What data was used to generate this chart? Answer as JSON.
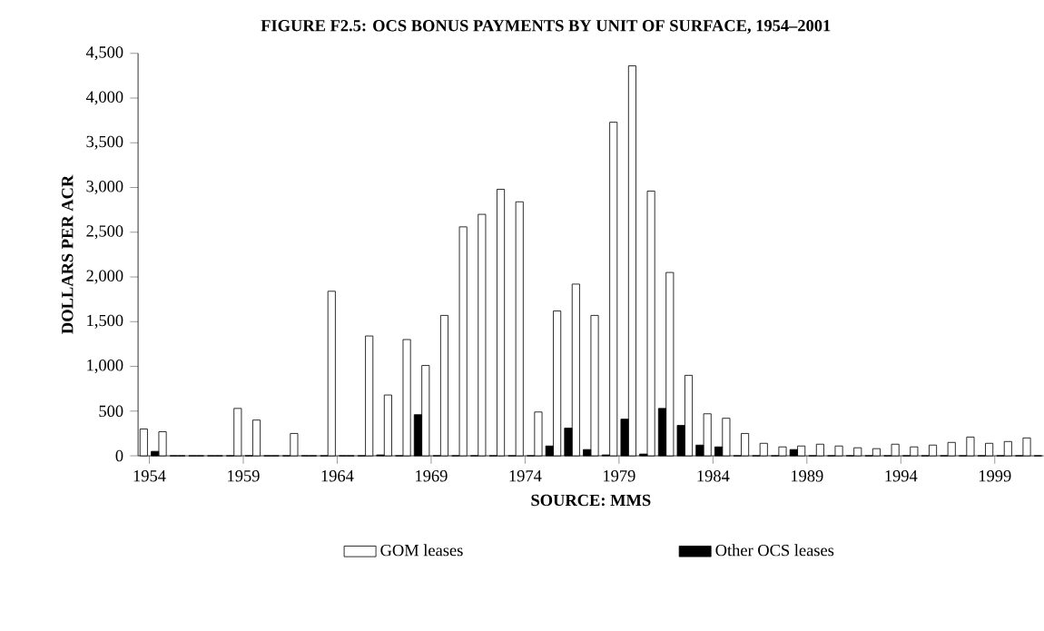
{
  "chart_data": {
    "type": "bar",
    "title": "FIGURE F2.5: OCS BONUS PAYMENTS BY UNIT OF SURFACE, 1954–2001",
    "ylabel": "DOLLARS PER ACR",
    "annotations": [
      "SOURCE: MMS"
    ],
    "categories": [
      "1954",
      null,
      null,
      null,
      null,
      "1959",
      null,
      null,
      null,
      null,
      "1964",
      null,
      null,
      null,
      null,
      "1969",
      null,
      null,
      null,
      null,
      "1974",
      null,
      null,
      null,
      null,
      "1979",
      null,
      null,
      null,
      null,
      "1984",
      null,
      null,
      null,
      null,
      "1989",
      null,
      null,
      null,
      null,
      "1994",
      null,
      null,
      null,
      null,
      "1999",
      null,
      null
    ],
    "series": [
      {
        "name": "GOM leases",
        "color": "#ffffff",
        "values": [
          300,
          270,
          0,
          0,
          0,
          530,
          400,
          0,
          250,
          0,
          1840,
          0,
          1340,
          680,
          1300,
          1010,
          1570,
          2560,
          2700,
          2980,
          2840,
          490,
          1620,
          1920,
          1570,
          3730,
          4360,
          2960,
          2050,
          900,
          470,
          420,
          250,
          140,
          100,
          110,
          130,
          110,
          90,
          80,
          130,
          100,
          120,
          150,
          210,
          140,
          160,
          200
        ]
      },
      {
        "name": "Other OCS leases",
        "color": "#000000",
        "values": [
          50,
          0,
          0,
          0,
          0,
          0,
          0,
          0,
          0,
          0,
          0,
          0,
          10,
          0,
          460,
          0,
          0,
          0,
          0,
          0,
          0,
          110,
          310,
          70,
          10,
          410,
          20,
          530,
          340,
          120,
          100,
          0,
          0,
          0,
          70,
          0,
          0,
          0,
          0,
          0,
          0,
          0,
          0,
          0,
          0,
          0,
          0,
          0
        ]
      }
    ],
    "ylim": [
      0,
      4500
    ],
    "yticks": [
      0,
      500,
      {
        "value": 1000,
        "label": "1,000"
      },
      {
        "value": 1500,
        "label": "1,500"
      },
      {
        "value": 2000,
        "label": "2,000"
      },
      {
        "value": 2500,
        "label": "2,500"
      },
      {
        "value": 3000,
        "label": "3,000"
      },
      {
        "value": 3500,
        "label": "3,500"
      },
      {
        "value": 4000,
        "label": "4,000"
      },
      {
        "value": 4500,
        "label": "4,500"
      }
    ],
    "legend": "bottom",
    "grid": false
  }
}
